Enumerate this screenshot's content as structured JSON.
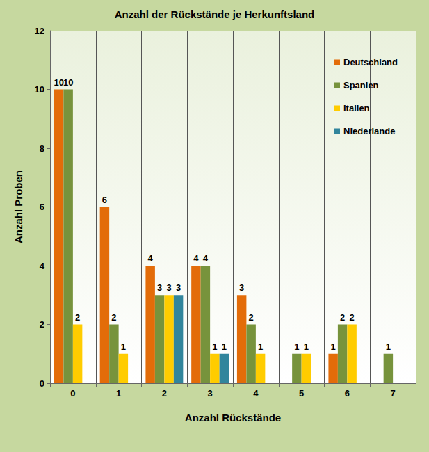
{
  "chart_data": {
    "type": "bar",
    "title": "Anzahl der Rückstände je Herkunftsland",
    "x_label": "Anzahl Rückstände",
    "y_label": "Anzahl Proben",
    "categories": [
      "0",
      "1",
      "2",
      "3",
      "4",
      "5",
      "6",
      "7"
    ],
    "series": [
      {
        "name": "Deutschland",
        "color": "#e36c09",
        "values": [
          10,
          6,
          4,
          4,
          3,
          null,
          1,
          null
        ]
      },
      {
        "name": "Spanien",
        "color": "#77933c",
        "values": [
          10,
          2,
          3,
          4,
          2,
          1,
          2,
          1
        ]
      },
      {
        "name": "Italien",
        "color": "#ffcc00",
        "values": [
          2,
          1,
          3,
          1,
          1,
          1,
          2,
          null
        ]
      },
      {
        "name": "Niederlande",
        "color": "#31859c",
        "values": [
          null,
          null,
          3,
          1,
          null,
          null,
          null,
          null
        ]
      }
    ],
    "ylim": [
      0,
      12
    ],
    "yticks": [
      0,
      2,
      4,
      6,
      8,
      10,
      12
    ],
    "grid": true,
    "legend": "upper right",
    "data_labels": true
  }
}
